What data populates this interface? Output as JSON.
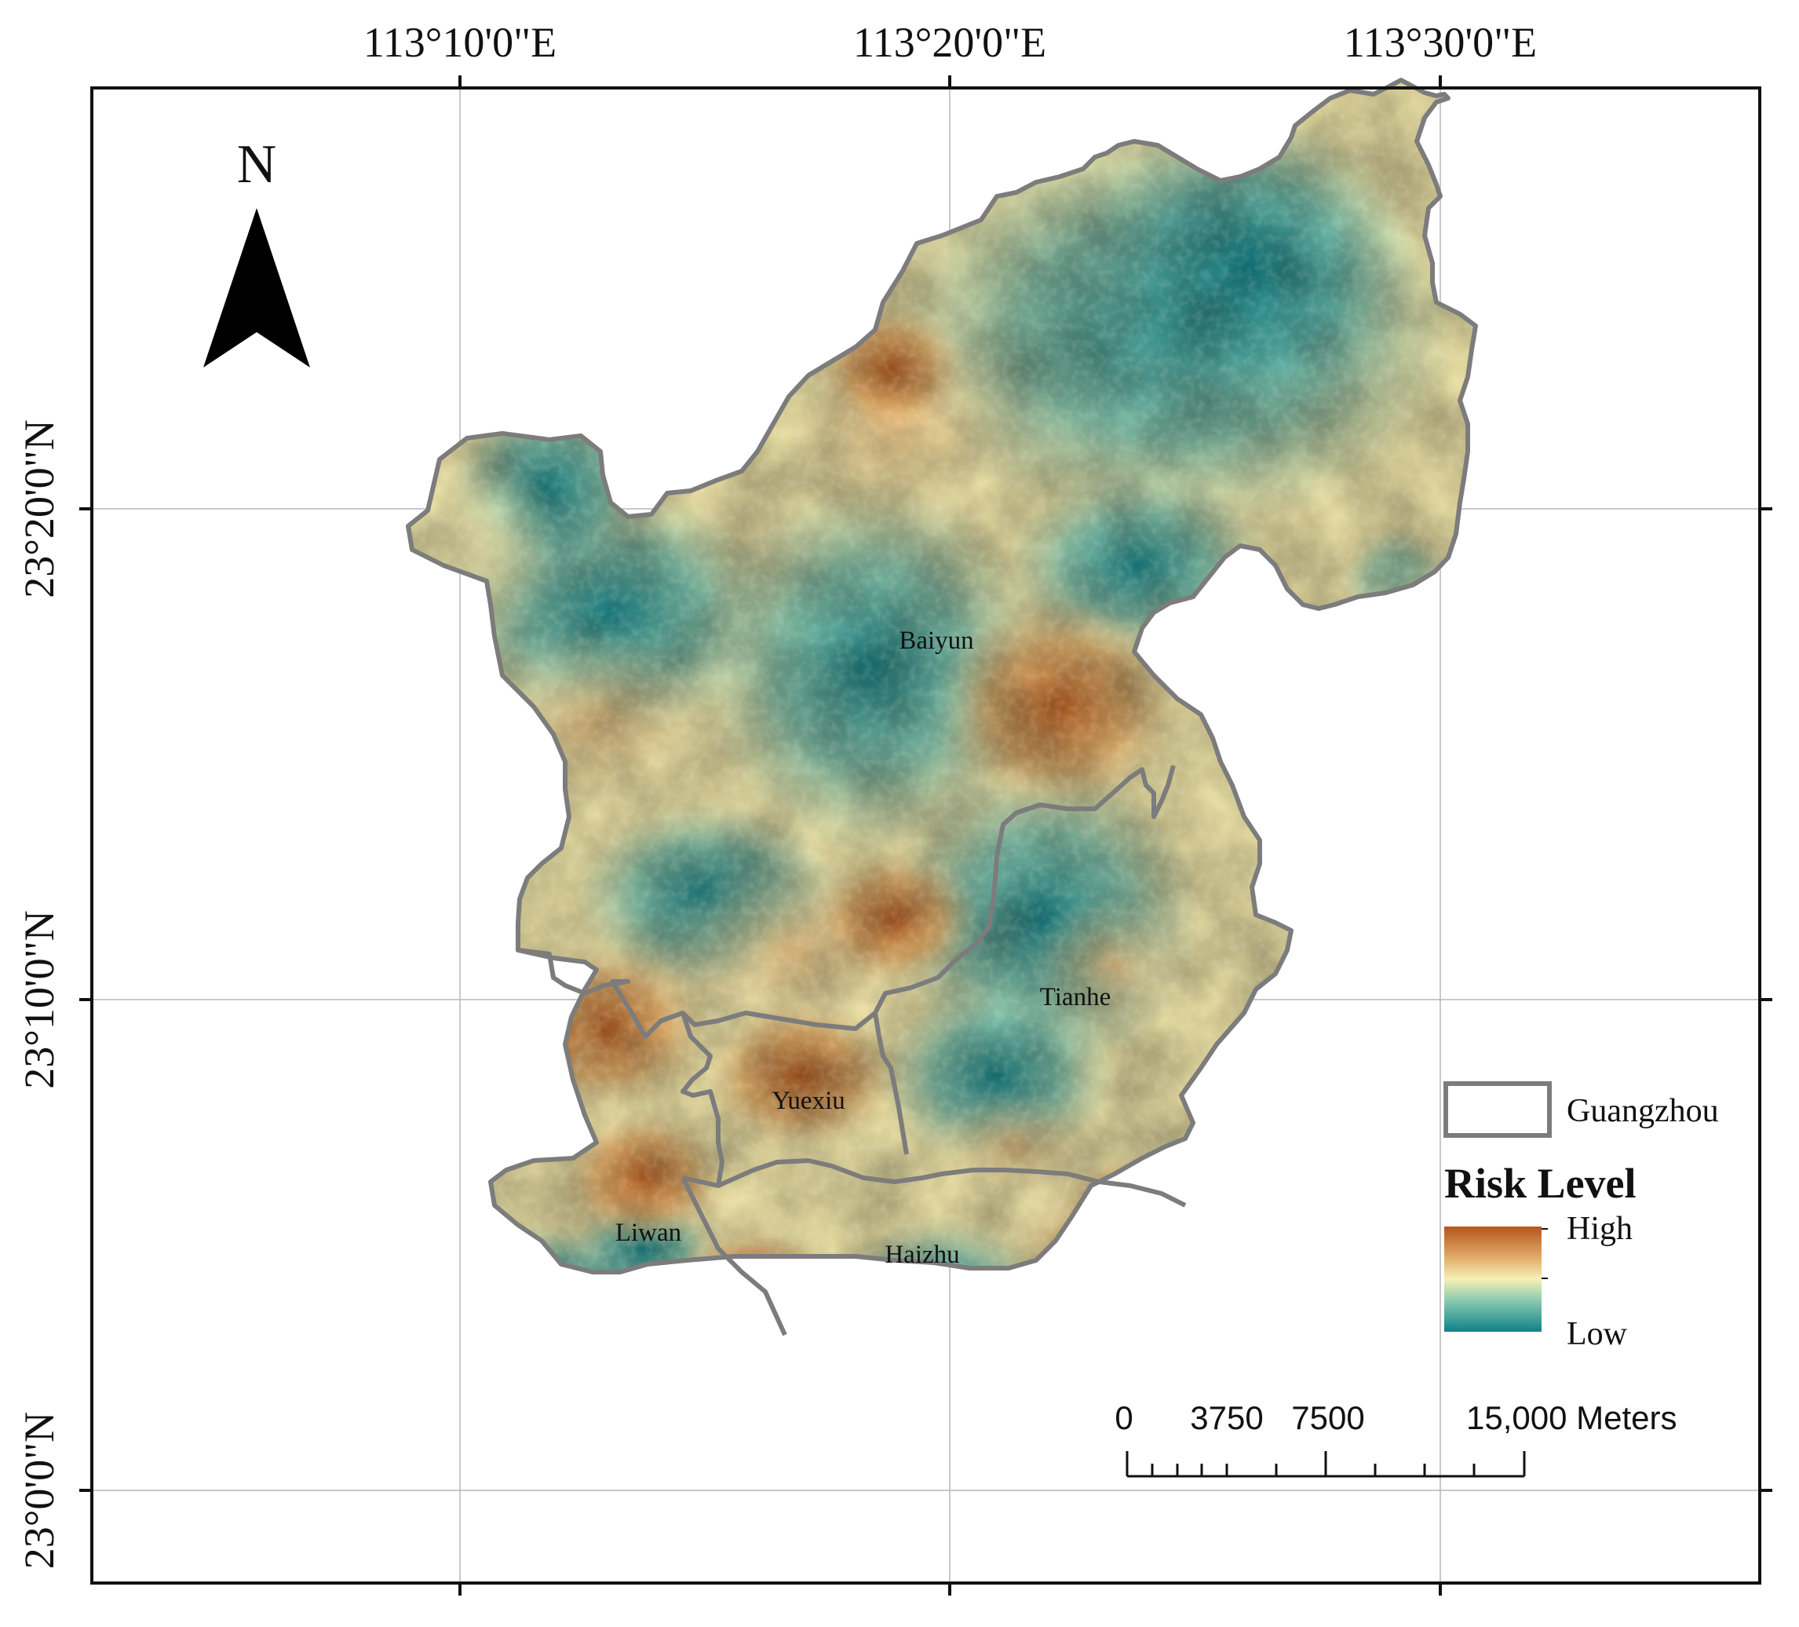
{
  "north_label": "N",
  "longitude_labels": [
    "113°10'0\"E",
    "113°20'0\"E",
    "113°30'0\"E"
  ],
  "latitude_labels": [
    "23°20'0\"N",
    "23°10'0\"N",
    "23°0'0\"N"
  ],
  "districts": {
    "baiyun": "Baiyun",
    "tianhe": "Tianhe",
    "yuexiu": "Yuexiu",
    "liwan": "Liwan",
    "haizhu": "Haizhu"
  },
  "legend": {
    "boundary_label": "Guangzhou",
    "title": "Risk Level",
    "high_label": "High",
    "low_label": "Low"
  },
  "colors": {
    "high": "#b3561c",
    "mid": "#f7f0b5",
    "low": "#16888e",
    "boundary": "#7c7c7c"
  },
  "scale_bar": {
    "labels": [
      "0",
      "3750",
      "7500",
      "15,000 Meters"
    ]
  }
}
